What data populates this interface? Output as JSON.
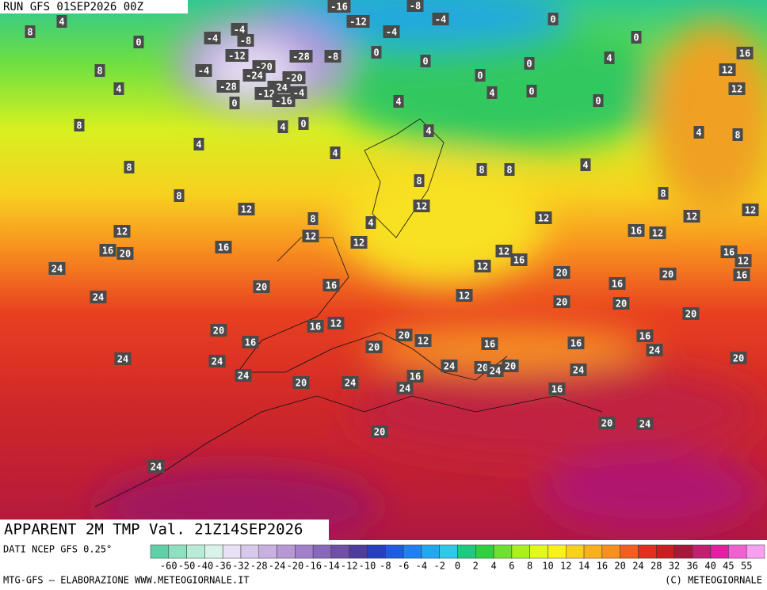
{
  "header": {
    "run": "RUN GFS 01SEP2026 00Z"
  },
  "map": {
    "labels": [
      4,
      8,
      0,
      -4,
      -4,
      -8,
      -12,
      -20,
      -24,
      -28,
      -8,
      -16,
      -12,
      -4,
      -8,
      -4,
      0,
      0,
      0,
      0,
      -4,
      -28,
      -24,
      -20,
      -12,
      -16,
      -4,
      0,
      8,
      4,
      8,
      4,
      0,
      4,
      4,
      4,
      4,
      0,
      0,
      0,
      4,
      0,
      4,
      8,
      8,
      8,
      8,
      8,
      4,
      8,
      4,
      8,
      16,
      12,
      12,
      12,
      12,
      16,
      20,
      16,
      24,
      12,
      8,
      4,
      12,
      12,
      12,
      12,
      16,
      12,
      12,
      20,
      16,
      12,
      12,
      16,
      20,
      24,
      12,
      20,
      16,
      20,
      16,
      12,
      16,
      20,
      20,
      16,
      12,
      20,
      12,
      16,
      20,
      16,
      16,
      16,
      24,
      20,
      24,
      24,
      24,
      20,
      24,
      16,
      24,
      24,
      20,
      24,
      20,
      24,
      16,
      20,
      20,
      24,
      20,
      24
    ]
  },
  "footer": {
    "title": "APPARENT 2M TMP Val. 21Z14SEP2026",
    "source": "DATI NCEP GFS 0.25°",
    "credit": "MTG-GFS — ELABORAZIONE WWW.METEOGIORNALE.IT",
    "copyright": "(C) METEOGIORNALE"
  },
  "scale": {
    "ticks": [
      -60,
      -50,
      -40,
      -36,
      -32,
      -28,
      -24,
      -20,
      -16,
      -14,
      -12,
      -10,
      -8,
      -6,
      -4,
      -2,
      0,
      2,
      4,
      6,
      8,
      10,
      12,
      14,
      16,
      20,
      24,
      28,
      32,
      36,
      40,
      45,
      55
    ],
    "colors": [
      "#5fd1a8",
      "#8fe0c0",
      "#b8ecd8",
      "#d8f4ea",
      "#e8e0f4",
      "#d8c8ec",
      "#c8b0e0",
      "#b898d4",
      "#a080c8",
      "#8868b8",
      "#7050a8",
      "#503c9c",
      "#2840c0",
      "#1f5ce0",
      "#2080f0",
      "#20a8f0",
      "#30c8e8",
      "#20c880",
      "#30d040",
      "#70e030",
      "#a8f020",
      "#e0f820",
      "#f8f020",
      "#f8d020",
      "#f8b020",
      "#f89020",
      "#f06020",
      "#e03020",
      "#c82020",
      "#a81838",
      "#c02070",
      "#e020a0",
      "#f060d0",
      "#f8a0f0"
    ]
  }
}
